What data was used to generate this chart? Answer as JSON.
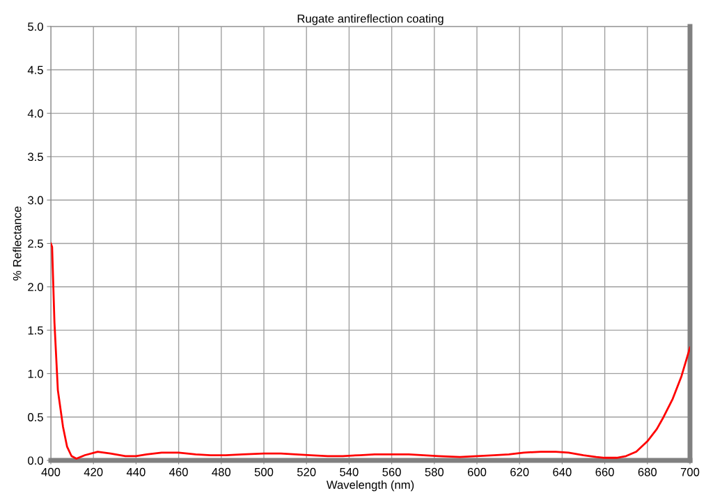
{
  "chart_data": {
    "type": "line",
    "title": "Rugate antireflection coating",
    "xlabel": "Wavelength (nm)",
    "ylabel": "% Reflectance",
    "series": [
      {
        "color": "#ff0000",
        "x": [
          400,
          400.6,
          401.7,
          403.3,
          405.7,
          407.6,
          409.7,
          412,
          416,
          422,
          428,
          435,
          440,
          445,
          452,
          460,
          468,
          475,
          482,
          490,
          500,
          508,
          515,
          522,
          530,
          537,
          545,
          552,
          560,
          568,
          575,
          582,
          592,
          600,
          608,
          615,
          622,
          630,
          637,
          643,
          650,
          656,
          660,
          665.6,
          670,
          674.8,
          680,
          684.4,
          687.6,
          691.9,
          696,
          700
        ],
        "values": [
          2.5,
          2.46,
          1.59,
          0.81,
          0.39,
          0.16,
          0.05,
          0.02,
          0.06,
          0.1,
          0.08,
          0.05,
          0.05,
          0.07,
          0.09,
          0.09,
          0.07,
          0.06,
          0.06,
          0.07,
          0.08,
          0.08,
          0.07,
          0.06,
          0.05,
          0.05,
          0.06,
          0.07,
          0.07,
          0.07,
          0.06,
          0.05,
          0.04,
          0.05,
          0.06,
          0.07,
          0.09,
          0.1,
          0.1,
          0.09,
          0.06,
          0.04,
          0.03,
          0.03,
          0.05,
          0.1,
          0.22,
          0.36,
          0.5,
          0.71,
          0.97,
          1.3
        ]
      }
    ],
    "xlim": [
      400,
      700
    ],
    "xticks": [
      400,
      420,
      440,
      460,
      480,
      500,
      520,
      540,
      560,
      580,
      600,
      620,
      640,
      660,
      680,
      700
    ],
    "ylim": [
      0,
      5
    ],
    "yticks": [
      {
        "value": 0,
        "label": "0.0"
      },
      {
        "value": 0.5,
        "label": "0.5"
      },
      {
        "value": 1,
        "label": "1.0"
      },
      {
        "value": 1.5,
        "label": "1.5"
      },
      {
        "value": 2,
        "label": "2.0"
      },
      {
        "value": 2.5,
        "label": "2.5"
      },
      {
        "value": 3,
        "label": "3.0"
      },
      {
        "value": 3.5,
        "label": "3.5"
      },
      {
        "value": 4,
        "label": "4.0"
      },
      {
        "value": 4.5,
        "label": "4.5"
      },
      {
        "value": 5,
        "label": "5.0"
      }
    ],
    "grid": true,
    "line_style": "solid",
    "marker": "none"
  }
}
